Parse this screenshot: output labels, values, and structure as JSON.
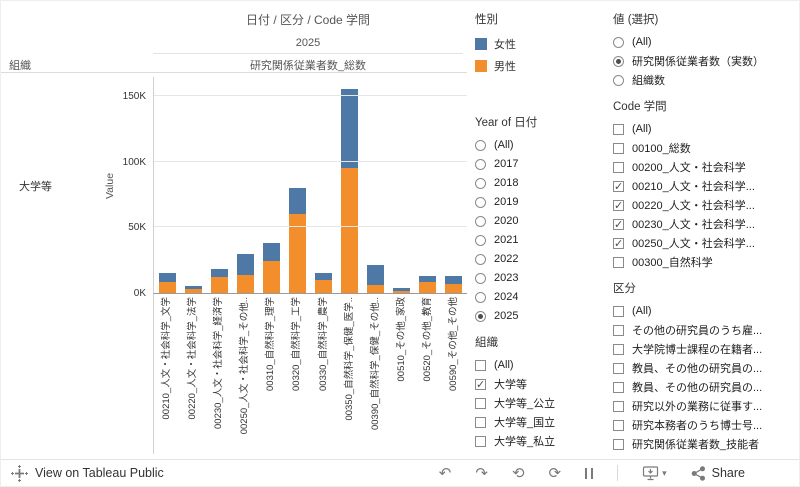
{
  "chart": {
    "title": "日付 / 区分 / Code 学問",
    "col_header": "2025",
    "measure_header": "研究関係従業者数_総数",
    "row_dimension": "組織",
    "row_label": "大学等"
  },
  "chart_data": {
    "type": "bar",
    "stacked": true,
    "title": "日付 / 区分 / Code 学問",
    "subtitle": "研究関係従業者数_総数",
    "year": "2025",
    "xlabel": "",
    "ylabel": "Value",
    "unit": "K (thousands of persons)",
    "ylim": [
      0,
      165
    ],
    "grid": true,
    "legend_position": "right",
    "ytick_values": [
      0,
      50,
      100,
      150
    ],
    "ytick_labels": [
      "0K",
      "50K",
      "100K",
      "150K"
    ],
    "categories": [
      "00210_人文・社会科学_文学",
      "00220_人文・社会科学_法学",
      "00230_人文・社会科学_経済学",
      "00250_人文・社会科学_その他..",
      "00310_自然科学_理学",
      "00320_自然科学_工学",
      "00330_自然科学_農学",
      "00350_自然科学_保健_医学..",
      "00390_自然科学_保健_その他..",
      "00510_その他_家政",
      "00520_その他_教育",
      "00590_その他_その他"
    ],
    "series": [
      {
        "name": "男性",
        "color": "#f28e2b",
        "values": [
          8,
          3,
          12,
          14,
          24,
          60,
          10,
          95,
          6,
          1.5,
          8,
          7
        ]
      },
      {
        "name": "女性",
        "color": "#4e79a7",
        "values": [
          7,
          2,
          6,
          16,
          14,
          20,
          5,
          60,
          15,
          2.5,
          5,
          6
        ]
      }
    ]
  },
  "legend": {
    "title": "性別",
    "items": [
      {
        "label": "女性",
        "color": "#4e79a7"
      },
      {
        "label": "男性",
        "color": "#f28e2b"
      }
    ]
  },
  "filters": {
    "year": {
      "title": "Year of 日付",
      "type": "radio",
      "selected": "2025",
      "options": [
        "(All)",
        "2017",
        "2018",
        "2019",
        "2020",
        "2021",
        "2022",
        "2023",
        "2024",
        "2025"
      ]
    },
    "org": {
      "title": "組織",
      "type": "checkbox",
      "options": [
        {
          "label": "(All)",
          "checked": false
        },
        {
          "label": "大学等",
          "checked": true
        },
        {
          "label": "大学等_公立",
          "checked": false
        },
        {
          "label": "大学等_国立",
          "checked": false
        },
        {
          "label": "大学等_私立",
          "checked": false
        }
      ]
    },
    "value_select": {
      "title": "値 (選択)",
      "type": "radio",
      "selected": "研究関係従業者数（実数）",
      "options": [
        "(All)",
        "研究関係従業者数（実数）",
        "組織数"
      ]
    },
    "code": {
      "title": "Code 学問",
      "type": "checkbox",
      "options": [
        {
          "label": "(All)",
          "checked": false
        },
        {
          "label": "00100_総数",
          "checked": false
        },
        {
          "label": "00200_人文・社会科学",
          "checked": false
        },
        {
          "label": "00210_人文・社会科学...",
          "checked": true
        },
        {
          "label": "00220_人文・社会科学...",
          "checked": true
        },
        {
          "label": "00230_人文・社会科学...",
          "checked": true
        },
        {
          "label": "00250_人文・社会科学...",
          "checked": true
        },
        {
          "label": "00300_自然科学",
          "checked": false
        }
      ]
    },
    "kubun": {
      "title": "区分",
      "type": "checkbox",
      "options": [
        {
          "label": "(All)",
          "checked": false
        },
        {
          "label": "その他の研究員のうち雇...",
          "checked": false
        },
        {
          "label": "大学院博士課程の在籍者...",
          "checked": false
        },
        {
          "label": "教員、その他の研究員の...",
          "checked": false
        },
        {
          "label": "教員、その他の研究員の...",
          "checked": false
        },
        {
          "label": "研究以外の業務に従事す...",
          "checked": false
        },
        {
          "label": "研究本務者のうち博士号...",
          "checked": false
        },
        {
          "label": "研究関係従業者数_技能者",
          "checked": false
        }
      ]
    }
  },
  "toolbar": {
    "view_label": "View on Tableau Public",
    "share_label": "Share"
  },
  "icons": {
    "undo": "↶",
    "redo": "↷",
    "reset": "⟲",
    "refresh": "⟳",
    "caret_down": "▾",
    "check": "✓"
  },
  "colors": {
    "female_blue": "#4e79a7",
    "male_orange": "#f28e2b",
    "axis_line": "#9a9a9a",
    "gridline": "#e6e6e6",
    "text": "#333333"
  }
}
